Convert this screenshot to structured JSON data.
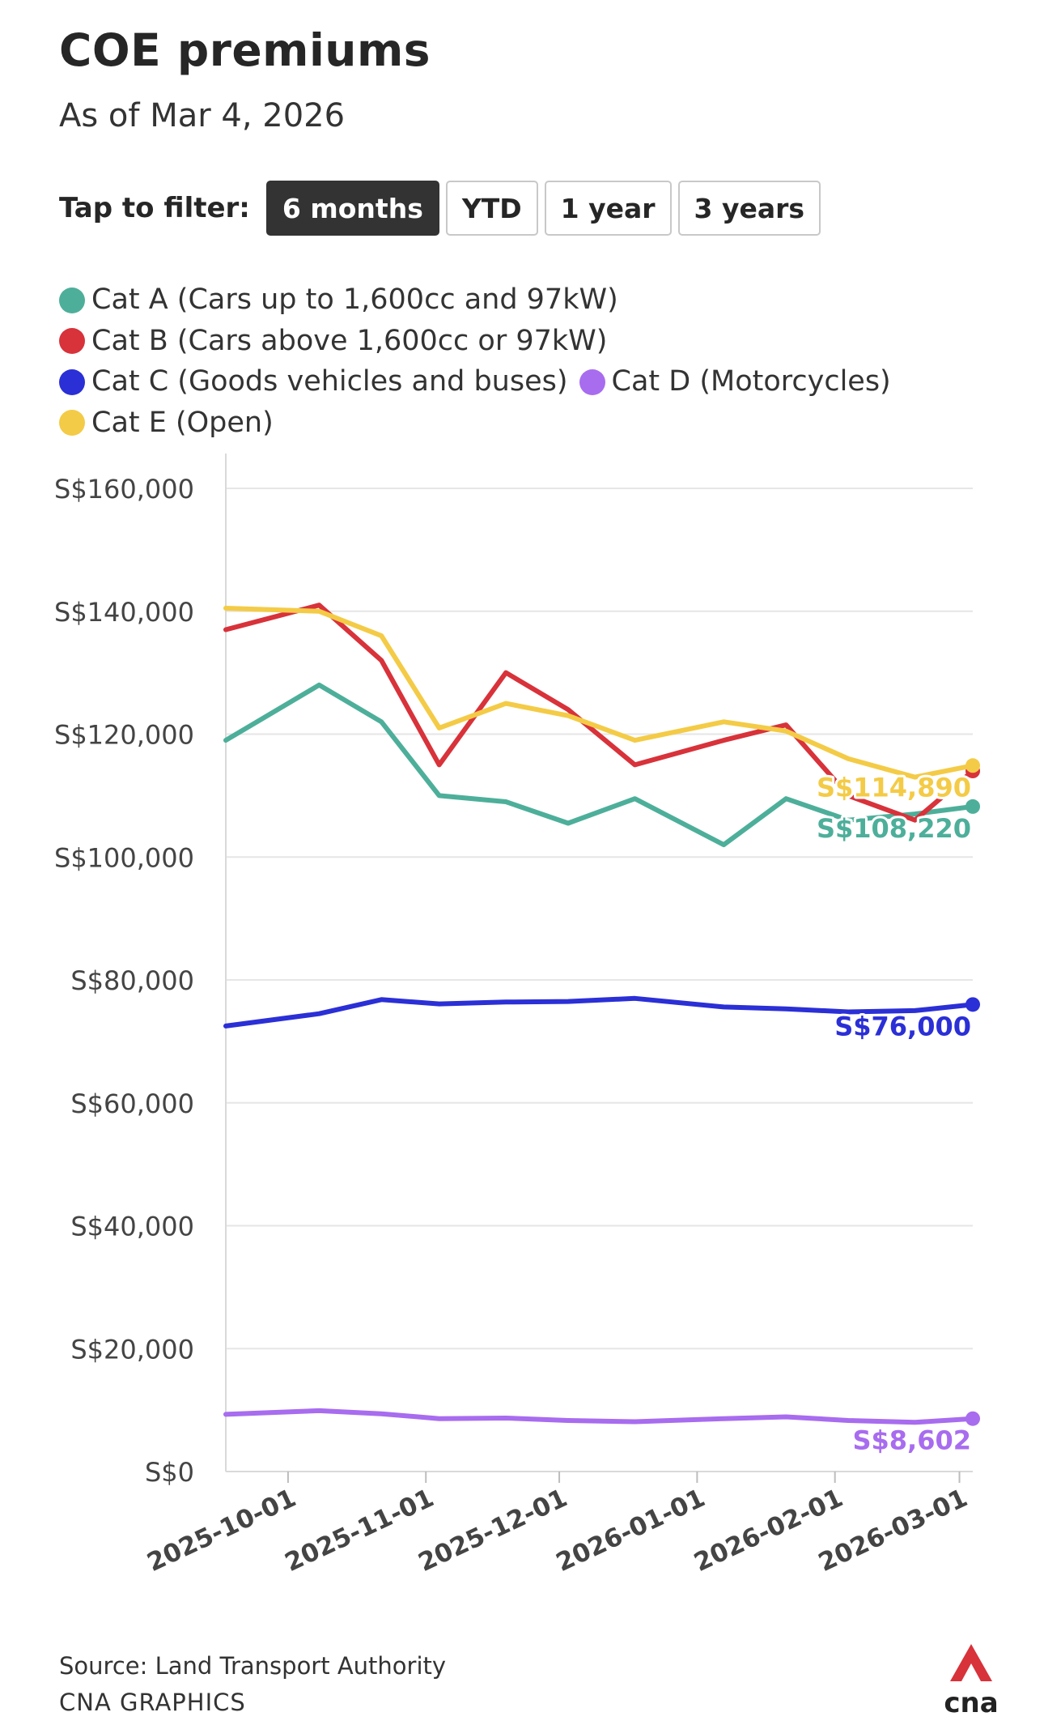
{
  "header": {
    "title": "COE premiums",
    "subtitle": "As of Mar 4, 2026"
  },
  "filter": {
    "label": "Tap to filter:",
    "options": [
      "6 months",
      "YTD",
      "1 year",
      "3 years"
    ],
    "selected": "6 months"
  },
  "legend": [
    {
      "label": "Cat A (Cars up to 1,600cc and 97kW)",
      "color": "#4daf9a"
    },
    {
      "label": "Cat B (Cars above 1,600cc or 97kW)",
      "color": "#d8323a"
    },
    {
      "label": "Cat C (Goods vehicles and buses)",
      "color": "#2b2fd6"
    },
    {
      "label": "Cat D (Motorcycles)",
      "color": "#a86cef"
    },
    {
      "label": "Cat E (Open)",
      "color": "#f4cb46"
    }
  ],
  "chart_data": {
    "type": "line",
    "title": "COE premiums",
    "subtitle": "As of Mar 4, 2026",
    "xlabel": "",
    "ylabel": "",
    "ylim": [
      0,
      165000
    ],
    "yticks": [
      0,
      20000,
      40000,
      60000,
      80000,
      100000,
      120000,
      140000,
      160000
    ],
    "ytick_labels": [
      "S$0",
      "S$20,000",
      "S$40,000",
      "S$60,000",
      "S$80,000",
      "S$100,000",
      "S$120,000",
      "S$140,000",
      "S$160,000"
    ],
    "xlim": [
      "2025-09-17",
      "2026-03-04"
    ],
    "xticks": [
      "2025-10-01",
      "2025-11-01",
      "2025-12-01",
      "2026-01-01",
      "2026-02-01",
      "2026-03-01"
    ],
    "x": [
      "2025-09-17",
      "2025-10-08",
      "2025-10-22",
      "2025-11-04",
      "2025-11-19",
      "2025-12-03",
      "2025-12-18",
      "2026-01-07",
      "2026-01-21",
      "2026-02-04",
      "2026-02-19",
      "2026-03-04"
    ],
    "series": [
      {
        "name": "Cat A (Cars up to 1,600cc and 97kW)",
        "color": "#4daf9a",
        "values": [
          119000,
          128000,
          122000,
          110000,
          109000,
          105500,
          109500,
          102000,
          109500,
          106000,
          107000,
          108220
        ],
        "end_label": "S$108,220"
      },
      {
        "name": "Cat B (Cars above 1,600cc or 97kW)",
        "color": "#d8323a",
        "values": [
          137000,
          141000,
          132000,
          115000,
          130000,
          124000,
          115000,
          119000,
          121500,
          110000,
          106000,
          114000
        ],
        "end_label": ""
      },
      {
        "name": "Cat C (Goods vehicles and buses)",
        "color": "#2b2fd6",
        "values": [
          72500,
          74500,
          76800,
          76100,
          76400,
          76500,
          77000,
          75600,
          75300,
          74800,
          75000,
          76000
        ],
        "end_label": "S$76,000"
      },
      {
        "name": "Cat D (Motorcycles)",
        "color": "#a86cef",
        "values": [
          9300,
          9900,
          9400,
          8600,
          8700,
          8300,
          8100,
          8600,
          8900,
          8300,
          8000,
          8602
        ],
        "end_label": "S$8,602"
      },
      {
        "name": "Cat E (Open)",
        "color": "#f4cb46",
        "values": [
          140500,
          140000,
          136000,
          121000,
          125000,
          123000,
          119000,
          122000,
          120500,
          116000,
          113000,
          114890
        ],
        "end_label": "S$114,890"
      }
    ]
  },
  "footer": {
    "source": "Source: Land Transport Authority",
    "credit": "CNA GRAPHICS",
    "logo_text": "cna"
  }
}
